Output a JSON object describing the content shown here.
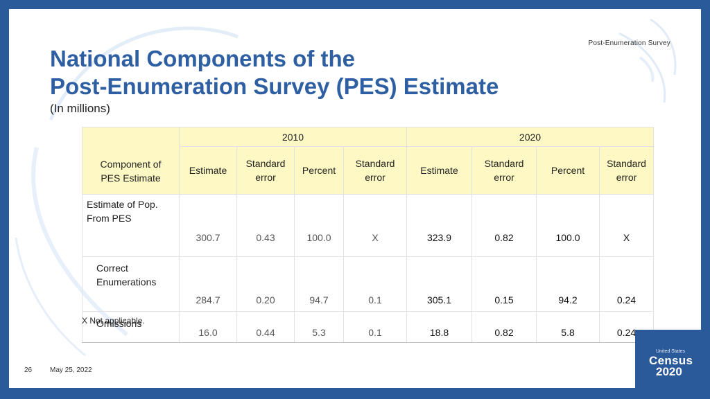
{
  "header_tag": "Post-Enumeration  Survey",
  "title_line1": "National Components of the",
  "title_line2": "Post-Enumeration Survey (PES) Estimate",
  "subtitle": "(In millions)",
  "table": {
    "component_header_line1": "Component of",
    "component_header_line2": "PES Estimate",
    "years": [
      "2010",
      "2020"
    ],
    "columns": [
      {
        "line1": "Estimate",
        "line2": ""
      },
      {
        "line1": "Standard",
        "line2": "error"
      },
      {
        "line1": "Percent",
        "line2": ""
      },
      {
        "line1": "Standard",
        "line2": "error"
      }
    ],
    "rows": [
      {
        "label_line1": "Estimate of Pop.",
        "label_line2": "From PES",
        "v2010": [
          "300.7",
          "0.43",
          "100.0",
          "X"
        ],
        "v2020": [
          "323.9",
          "0.82",
          "100.0",
          "X"
        ]
      },
      {
        "label_line1": "Correct",
        "label_line2": "Enumerations",
        "v2010": [
          "284.7",
          "0.20",
          "94.7",
          "0.1"
        ],
        "v2020": [
          "305.1",
          "0.15",
          "94.2",
          "0.24"
        ]
      },
      {
        "label_line1": "Omissions",
        "label_line2": "",
        "v2010": [
          "16.0",
          "0.44",
          "5.3",
          "0.1"
        ],
        "v2020": [
          "18.8",
          "0.82",
          "5.8",
          "0.24"
        ]
      }
    ]
  },
  "footnote": "X Not applicable.",
  "page_number": "26",
  "date": "May 25, 2022",
  "logo": {
    "top": "United States",
    "mid": "Census",
    "bot": "2020"
  },
  "colors": {
    "frame": "#2b5a9a",
    "title": "#2e5fa3",
    "header_fill": "#fdf8c4"
  }
}
